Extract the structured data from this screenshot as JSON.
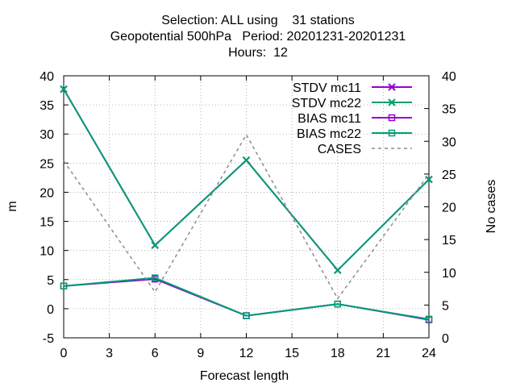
{
  "title": {
    "line1": "Selection: ALL using    31 stations",
    "line2": "Geopotential 500hPa   Period: 20201231-20201231",
    "line3": "Hours:  12"
  },
  "chart_data": {
    "type": "line",
    "xlabel": "Forecast length",
    "ylabel": "m",
    "y2label": "No cases",
    "xlim": [
      0,
      24
    ],
    "ylim": [
      -5,
      40
    ],
    "y2lim": [
      0,
      40
    ],
    "xticks": [
      0,
      3,
      6,
      9,
      12,
      15,
      18,
      21,
      24
    ],
    "yticks": [
      -5,
      0,
      5,
      10,
      15,
      20,
      25,
      30,
      35,
      40
    ],
    "y2ticks": [
      0,
      5,
      10,
      15,
      20,
      25,
      30,
      35,
      40
    ],
    "grid": true,
    "legend_position": "top-right",
    "series": [
      {
        "name": "STDV mc11",
        "axis": "y1",
        "color": "#9400d3",
        "marker": "x",
        "dash": "solid",
        "x": [
          0,
          6,
          12,
          18,
          24
        ],
        "values": [
          37.7,
          10.9,
          25.5,
          6.6,
          22.2
        ]
      },
      {
        "name": "STDV mc22",
        "axis": "y1",
        "color": "#009e73",
        "marker": "x",
        "dash": "solid",
        "x": [
          0,
          6,
          12,
          18,
          24
        ],
        "values": [
          37.7,
          10.9,
          25.5,
          6.6,
          22.2
        ]
      },
      {
        "name": "BIAS mc11",
        "axis": "y1",
        "color": "#9400d3",
        "marker": "square",
        "dash": "solid",
        "x": [
          0,
          6,
          12,
          18,
          24
        ],
        "values": [
          3.9,
          5.1,
          -1.2,
          0.8,
          -1.9
        ]
      },
      {
        "name": "BIAS mc22",
        "axis": "y1",
        "color": "#009e73",
        "marker": "square",
        "dash": "solid",
        "x": [
          0,
          6,
          12,
          18,
          24
        ],
        "values": [
          3.9,
          5.3,
          -1.2,
          0.8,
          -1.8
        ]
      },
      {
        "name": "CASES",
        "axis": "y2",
        "color": "#8c8c8c",
        "marker": "none",
        "dash": "dashed",
        "x": [
          0,
          6,
          12,
          18,
          24
        ],
        "values": [
          27,
          7,
          31,
          6,
          25
        ]
      }
    ]
  }
}
